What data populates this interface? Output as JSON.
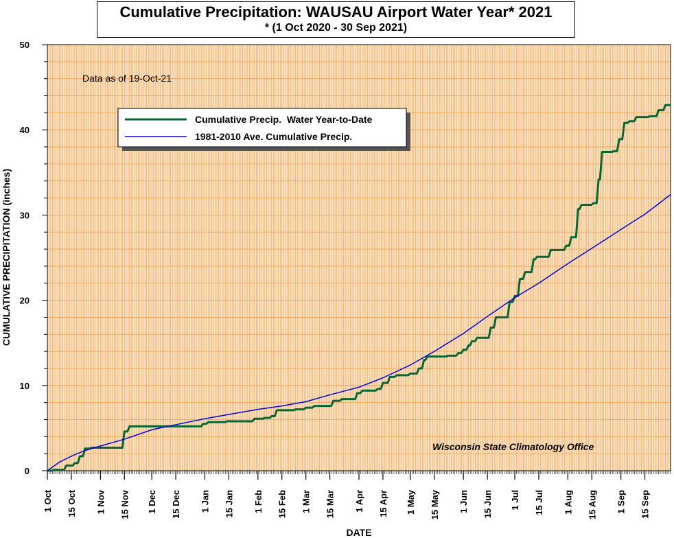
{
  "title": "Cumulative Precipitation: WAUSAU Airport Water Year* 2021",
  "subtitle": "* (1 Oct 2020 - 30 Sep 2021)",
  "annotation": "Data as of 19-Oct-21",
  "credit": "Wisconsin State Climatology Office",
  "colors": {
    "background": "#fbe3c4",
    "grid": "#f0a050",
    "actual": "#006633",
    "average": "#0000dd"
  },
  "chart_data": {
    "type": "line",
    "title": "Cumulative Precipitation: WAUSAU Airport Water Year* 2021",
    "subtitle": "* (1 Oct 2020 - 30 Sep 2021)",
    "xlabel": "DATE",
    "ylabel": "CUMULATIVE PRECIPITATION (inches)",
    "ylim": [
      0,
      50
    ],
    "xlim": [
      "2020-10-01",
      "2021-09-30"
    ],
    "yticks": [
      0,
      10,
      20,
      30,
      40,
      50
    ],
    "xtick_labels": [
      "1 Oct",
      "15 Oct",
      "1 Nov",
      "15 Nov",
      "1 Dec",
      "15 Dec",
      "1 Jan",
      "15 Jan",
      "1 Feb",
      "15 Feb",
      "1 Mar",
      "15 Mar",
      "1 Apr",
      "15 Apr",
      "1 May",
      "15 May",
      "1 Jun",
      "15 Jun",
      "1 Jul",
      "15 Jul",
      "1 Aug",
      "15 Aug",
      "1 Sep",
      "15 Sep"
    ],
    "xtick_dates": [
      "2020-10-01",
      "2020-10-15",
      "2020-11-01",
      "2020-11-15",
      "2020-12-01",
      "2020-12-15",
      "2021-01-01",
      "2021-01-15",
      "2021-02-01",
      "2021-02-15",
      "2021-03-01",
      "2021-03-15",
      "2021-04-01",
      "2021-04-15",
      "2021-05-01",
      "2021-05-15",
      "2021-06-01",
      "2021-06-15",
      "2021-07-01",
      "2021-07-15",
      "2021-08-01",
      "2021-08-15",
      "2021-09-01",
      "2021-09-15"
    ],
    "grid": true,
    "legend_position": "top-left",
    "series": [
      {
        "name": "Cumulative Precip.  Water Year-to-Date",
        "step": true,
        "points": [
          [
            "2020-10-01",
            0
          ],
          [
            "2020-10-05",
            0.1
          ],
          [
            "2020-10-12",
            0.6
          ],
          [
            "2020-10-17",
            0.9
          ],
          [
            "2020-10-20",
            1.7
          ],
          [
            "2020-10-23",
            2.6
          ],
          [
            "2020-10-27",
            2.7
          ],
          [
            "2020-11-15",
            4.6
          ],
          [
            "2020-11-18",
            5.2
          ],
          [
            "2020-12-31",
            5.5
          ],
          [
            "2021-01-03",
            5.7
          ],
          [
            "2021-01-14",
            5.8
          ],
          [
            "2021-01-30",
            6.1
          ],
          [
            "2021-02-05",
            6.2
          ],
          [
            "2021-02-09",
            6.4
          ],
          [
            "2021-02-12",
            7.1
          ],
          [
            "2021-02-23",
            7.2
          ],
          [
            "2021-03-01",
            7.4
          ],
          [
            "2021-03-06",
            7.6
          ],
          [
            "2021-03-17",
            8.2
          ],
          [
            "2021-03-22",
            8.4
          ],
          [
            "2021-03-31",
            9.1
          ],
          [
            "2021-04-03",
            9.4
          ],
          [
            "2021-04-12",
            9.6
          ],
          [
            "2021-04-15",
            10.3
          ],
          [
            "2021-04-19",
            11.0
          ],
          [
            "2021-04-23",
            11.2
          ],
          [
            "2021-05-01",
            11.4
          ],
          [
            "2021-05-06",
            12.0
          ],
          [
            "2021-05-09",
            13.0
          ],
          [
            "2021-05-11",
            13.4
          ],
          [
            "2021-05-23",
            13.5
          ],
          [
            "2021-05-29",
            13.8
          ],
          [
            "2021-06-01",
            14.2
          ],
          [
            "2021-06-04",
            14.7
          ],
          [
            "2021-06-06",
            15.2
          ],
          [
            "2021-06-09",
            15.6
          ],
          [
            "2021-06-17",
            16.8
          ],
          [
            "2021-06-20",
            18.0
          ],
          [
            "2021-06-28",
            19.8
          ],
          [
            "2021-07-01",
            20.5
          ],
          [
            "2021-07-04",
            22.5
          ],
          [
            "2021-07-07",
            23.3
          ],
          [
            "2021-07-12",
            24.8
          ],
          [
            "2021-07-14",
            25.1
          ],
          [
            "2021-07-22",
            25.9
          ],
          [
            "2021-07-31",
            26.4
          ],
          [
            "2021-08-03",
            27.4
          ],
          [
            "2021-08-07",
            30.7
          ],
          [
            "2021-08-09",
            31.2
          ],
          [
            "2021-08-16",
            31.4
          ],
          [
            "2021-08-19",
            34.2
          ],
          [
            "2021-08-21",
            37.4
          ],
          [
            "2021-08-28",
            37.5
          ],
          [
            "2021-08-31",
            38.9
          ],
          [
            "2021-09-03",
            40.8
          ],
          [
            "2021-09-06",
            41.0
          ],
          [
            "2021-09-10",
            41.5
          ],
          [
            "2021-09-18",
            41.6
          ],
          [
            "2021-09-23",
            42.3
          ],
          [
            "2021-09-27",
            42.9
          ],
          [
            "2021-09-30",
            42.9
          ]
        ]
      },
      {
        "name": "1981-2010 Ave. Cumulative Precip.",
        "step": false,
        "points": [
          [
            "2020-10-01",
            0
          ],
          [
            "2020-10-08",
            1.0
          ],
          [
            "2020-10-15",
            1.7
          ],
          [
            "2020-10-22",
            2.3
          ],
          [
            "2020-11-01",
            2.9
          ],
          [
            "2020-11-15",
            3.7
          ],
          [
            "2020-12-01",
            4.8
          ],
          [
            "2020-12-15",
            5.4
          ],
          [
            "2021-01-01",
            6.1
          ],
          [
            "2021-01-15",
            6.6
          ],
          [
            "2021-02-01",
            7.2
          ],
          [
            "2021-02-15",
            7.6
          ],
          [
            "2021-03-01",
            8.1
          ],
          [
            "2021-03-15",
            8.9
          ],
          [
            "2021-04-01",
            9.8
          ],
          [
            "2021-04-15",
            10.9
          ],
          [
            "2021-05-01",
            12.4
          ],
          [
            "2021-05-15",
            14.0
          ],
          [
            "2021-06-01",
            16.1
          ],
          [
            "2021-06-15",
            18.1
          ],
          [
            "2021-07-01",
            20.3
          ],
          [
            "2021-07-15",
            22.0
          ],
          [
            "2021-08-01",
            24.3
          ],
          [
            "2021-08-15",
            26.1
          ],
          [
            "2021-09-01",
            28.3
          ],
          [
            "2021-09-15",
            30.1
          ],
          [
            "2021-09-30",
            32.4
          ]
        ]
      }
    ]
  }
}
